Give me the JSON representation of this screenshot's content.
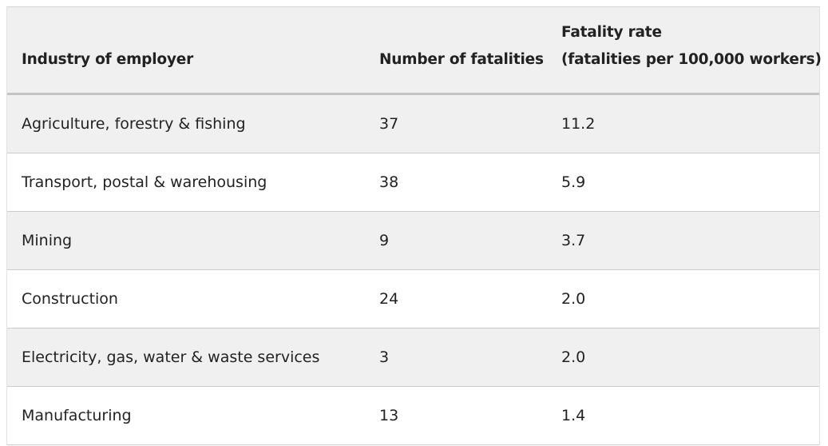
{
  "table": {
    "headers": {
      "industry": "Industry of employer",
      "fatalities": "Number of fatalities",
      "rate_line1": "Fatality rate",
      "rate_line2": "(fatalities per 100,000 workers)"
    },
    "rows": [
      {
        "industry": "Agriculture, forestry & fishing",
        "fatalities": "37",
        "rate": "11.2"
      },
      {
        "industry": "Transport, postal & warehousing",
        "fatalities": "38",
        "rate": "5.9"
      },
      {
        "industry": "Mining",
        "fatalities": "9",
        "rate": "3.7"
      },
      {
        "industry": "Construction",
        "fatalities": "24",
        "rate": "2.0"
      },
      {
        "industry": "Electricity, gas, water & waste services",
        "fatalities": "3",
        "rate": "2.0"
      },
      {
        "industry": "Manufacturing",
        "fatalities": "13",
        "rate": "1.4"
      }
    ]
  }
}
